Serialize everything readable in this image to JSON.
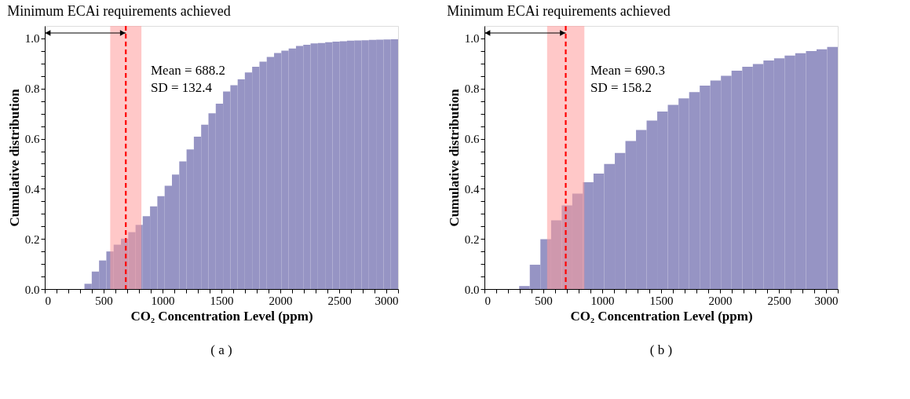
{
  "chart_data": [
    {
      "type": "histogram",
      "title": "Minimum ECAi requirements achieved",
      "xlabel": "CO₂ Concentration Level (ppm)",
      "ylabel": "Cumulative distribution",
      "bins": [
        337,
        399,
        461,
        523,
        585,
        647,
        709,
        771,
        832,
        894,
        956,
        1018,
        1080,
        1142,
        1204,
        1266,
        1328,
        1390,
        1452,
        1514,
        1576,
        1638,
        1699,
        1761,
        1823,
        1885,
        1947,
        2009,
        2071,
        2133,
        2195,
        2257,
        2319,
        2381,
        2443,
        2505,
        2566,
        2628,
        2690,
        2752,
        2814,
        2876,
        2938,
        3000
      ],
      "values": [
        0.021,
        0.07,
        0.114,
        0.15,
        0.177,
        0.201,
        0.227,
        0.256,
        0.291,
        0.33,
        0.371,
        0.412,
        0.457,
        0.509,
        0.557,
        0.608,
        0.656,
        0.701,
        0.74,
        0.788,
        0.813,
        0.837,
        0.864,
        0.887,
        0.907,
        0.926,
        0.942,
        0.951,
        0.96,
        0.97,
        0.975,
        0.98,
        0.982,
        0.985,
        0.987,
        0.989,
        0.991,
        0.992,
        0.993,
        0.994,
        0.995,
        0.996,
        0.997
      ],
      "color": "#9694c4",
      "xlim": [
        0,
        3000
      ],
      "ylim": [
        0,
        1.05
      ],
      "xticks": [
        0,
        {
          "value": 100,
          "label": null
        },
        {
          "value": 200,
          "label": null
        },
        {
          "value": 300,
          "label": null
        },
        {
          "value": 400,
          "label": null
        },
        500,
        {
          "value": 600,
          "label": null
        },
        {
          "value": 700,
          "label": null
        },
        {
          "value": 800,
          "label": null
        },
        {
          "value": 900,
          "label": null
        },
        1000,
        {
          "value": 1100,
          "label": null
        },
        {
          "value": 1200,
          "label": null
        },
        {
          "value": 1300,
          "label": null
        },
        {
          "value": 1400,
          "label": null
        },
        1500,
        {
          "value": 1600,
          "label": null
        },
        {
          "value": 1700,
          "label": null
        },
        {
          "value": 1800,
          "label": null
        },
        {
          "value": 1900,
          "label": null
        },
        2000,
        {
          "value": 2100,
          "label": null
        },
        {
          "value": 2200,
          "label": null
        },
        {
          "value": 2300,
          "label": null
        },
        {
          "value": 2400,
          "label": null
        },
        2500,
        {
          "value": 2600,
          "label": null
        },
        {
          "value": 2700,
          "label": null
        },
        {
          "value": 2800,
          "label": null
        },
        {
          "value": 2900,
          "label": null
        },
        3000
      ],
      "yticks": [
        {
          "value": 0,
          "label": "0.0"
        },
        {
          "value": 0.05,
          "label": null
        },
        {
          "value": 0.1,
          "label": null
        },
        {
          "value": 0.15,
          "label": null
        },
        0.2,
        {
          "value": 0.25,
          "label": null
        },
        {
          "value": 0.3,
          "label": null
        },
        {
          "value": 0.35,
          "label": null
        },
        0.4,
        {
          "value": 0.45,
          "label": null
        },
        {
          "value": 0.5,
          "label": null
        },
        {
          "value": 0.55,
          "label": null
        },
        0.6,
        {
          "value": 0.65,
          "label": null
        },
        {
          "value": 0.7,
          "label": null
        },
        {
          "value": 0.75,
          "label": null
        },
        0.8,
        {
          "value": 0.85,
          "label": null
        },
        {
          "value": 0.9,
          "label": null
        },
        {
          "value": 0.95,
          "label": null
        },
        {
          "value": 1,
          "label": "1.0"
        }
      ],
      "ref_lines": [
        {
          "axis": "x",
          "value": 688.2,
          "color": "#ff0000",
          "line_style": "dashed"
        }
      ],
      "bands": [
        {
          "axis": "x",
          "from": 555.8,
          "to": 820.6,
          "color": "#ff9a9a"
        }
      ],
      "annotations": [
        "Mean = 688.2",
        "SD = 132.4",
        "( a )"
      ],
      "grid": false
    },
    {
      "type": "histogram",
      "title": "Minimum ECAi requirements achieved",
      "xlabel": "CO₂ Concentration Level (ppm)",
      "ylabel": "Cumulative distribution",
      "bins": [
        295,
        385,
        475,
        566,
        656,
        746,
        836,
        926,
        1016,
        1107,
        1197,
        1287,
        1377,
        1467,
        1557,
        1648,
        1738,
        1828,
        1918,
        2008,
        2098,
        2189,
        2279,
        2369,
        2459,
        2549,
        2639,
        2730,
        2820,
        2910,
        3000
      ],
      "values": [
        0.012,
        0.097,
        0.199,
        0.274,
        0.334,
        0.381,
        0.426,
        0.461,
        0.499,
        0.543,
        0.591,
        0.635,
        0.672,
        0.708,
        0.735,
        0.761,
        0.786,
        0.812,
        0.832,
        0.851,
        0.871,
        0.887,
        0.898,
        0.912,
        0.921,
        0.932,
        0.941,
        0.95,
        0.957,
        0.966
      ],
      "color": "#9694c4",
      "xlim": [
        0,
        3000
      ],
      "ylim": [
        0,
        1.05
      ],
      "xticks": [
        0,
        {
          "value": 100,
          "label": null
        },
        {
          "value": 200,
          "label": null
        },
        {
          "value": 300,
          "label": null
        },
        {
          "value": 400,
          "label": null
        },
        500,
        {
          "value": 600,
          "label": null
        },
        {
          "value": 700,
          "label": null
        },
        {
          "value": 800,
          "label": null
        },
        {
          "value": 900,
          "label": null
        },
        1000,
        {
          "value": 1100,
          "label": null
        },
        {
          "value": 1200,
          "label": null
        },
        {
          "value": 1300,
          "label": null
        },
        {
          "value": 1400,
          "label": null
        },
        1500,
        {
          "value": 1600,
          "label": null
        },
        {
          "value": 1700,
          "label": null
        },
        {
          "value": 1800,
          "label": null
        },
        {
          "value": 1900,
          "label": null
        },
        2000,
        {
          "value": 2100,
          "label": null
        },
        {
          "value": 2200,
          "label": null
        },
        {
          "value": 2300,
          "label": null
        },
        {
          "value": 2400,
          "label": null
        },
        2500,
        {
          "value": 2600,
          "label": null
        },
        {
          "value": 2700,
          "label": null
        },
        {
          "value": 2800,
          "label": null
        },
        {
          "value": 2900,
          "label": null
        },
        3000
      ],
      "yticks": [
        {
          "value": 0,
          "label": "0.0"
        },
        {
          "value": 0.05,
          "label": null
        },
        {
          "value": 0.1,
          "label": null
        },
        {
          "value": 0.15,
          "label": null
        },
        0.2,
        {
          "value": 0.25,
          "label": null
        },
        {
          "value": 0.3,
          "label": null
        },
        {
          "value": 0.35,
          "label": null
        },
        0.4,
        {
          "value": 0.45,
          "label": null
        },
        {
          "value": 0.5,
          "label": null
        },
        {
          "value": 0.55,
          "label": null
        },
        0.6,
        {
          "value": 0.65,
          "label": null
        },
        {
          "value": 0.7,
          "label": null
        },
        {
          "value": 0.75,
          "label": null
        },
        0.8,
        {
          "value": 0.85,
          "label": null
        },
        {
          "value": 0.9,
          "label": null
        },
        {
          "value": 0.95,
          "label": null
        },
        {
          "value": 1,
          "label": "1.0"
        }
      ],
      "ref_lines": [
        {
          "axis": "x",
          "value": 690.3,
          "color": "#ff0000",
          "line_style": "dashed"
        }
      ],
      "bands": [
        {
          "axis": "x",
          "from": 532.1,
          "to": 848.5,
          "color": "#ff9a9a"
        }
      ],
      "annotations": [
        "Mean = 690.3",
        "SD = 158.2",
        "( b )"
      ],
      "grid": false
    }
  ]
}
